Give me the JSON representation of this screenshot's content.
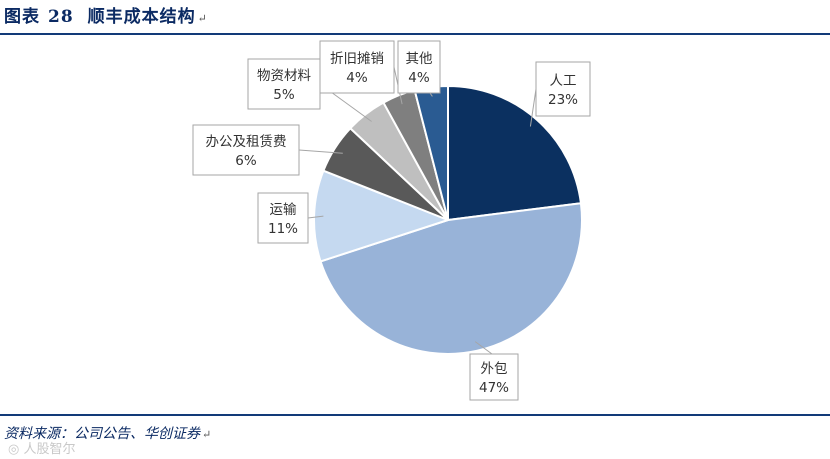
{
  "header": {
    "prefix": "图表",
    "number": "28",
    "text": "顺丰成本结构"
  },
  "footer": {
    "source": "资料来源：公司公告、华创证券",
    "watermark": "人股智尔"
  },
  "colors": {
    "rule": "#123a78",
    "slices": [
      "#0b3060",
      "#98b3d8",
      "#c5d9f0",
      "#595959",
      "#bfbfbf",
      "#7f7f7f",
      "#2a5b92"
    ]
  },
  "chart_data": {
    "type": "pie",
    "title": "",
    "start_angle_deg": 0,
    "direction": "clockwise",
    "slices": [
      {
        "label": "人工",
        "value": 23,
        "value_label": "23%"
      },
      {
        "label": "外包",
        "value": 47,
        "value_label": "47%"
      },
      {
        "label": "运输",
        "value": 11,
        "value_label": "11%"
      },
      {
        "label": "办公及租赁费",
        "value": 6,
        "value_label": "6%"
      },
      {
        "label": "物资材料",
        "value": 5,
        "value_label": "5%"
      },
      {
        "label": "折旧摊销",
        "value": 4,
        "value_label": "4%"
      },
      {
        "label": "其他",
        "value": 4,
        "value_label": "4%"
      }
    ]
  }
}
